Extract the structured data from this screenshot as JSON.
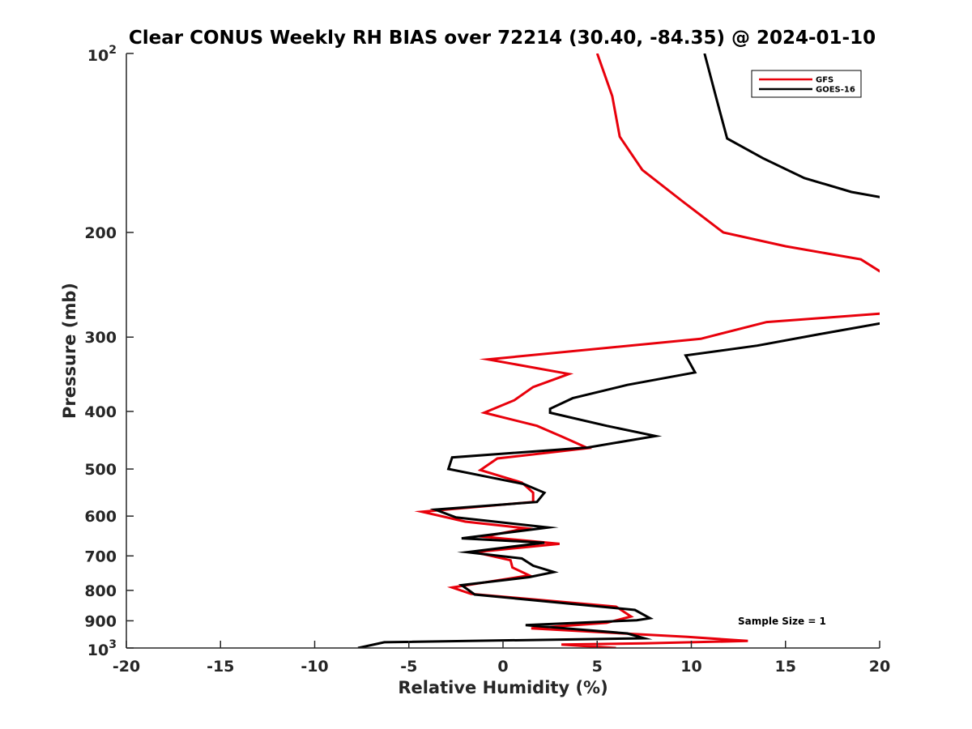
{
  "colors": {
    "GFS": "#e8000b",
    "GOES-16": "#000000",
    "axis": "#262626"
  },
  "chart_data": {
    "type": "line",
    "title": "Clear CONUS Weekly RH BIAS over 72214 (30.40, -84.35) @ 2024-01-10",
    "xlabel": "Relative Humidity (%)",
    "ylabel": "Pressure (mb)",
    "xlim": [
      -20,
      20
    ],
    "ylim": [
      100,
      1000
    ],
    "yscale": "log",
    "y_reversed": true,
    "xticks": [
      -20,
      -15,
      -10,
      -5,
      0,
      5,
      10,
      15,
      20
    ],
    "xtick_labels": [
      "-20",
      "-15",
      "-10",
      "-5",
      "0",
      "5",
      "10",
      "15",
      "20"
    ],
    "yticks": [
      {
        "value": 100,
        "base": "10",
        "exp": "2"
      },
      {
        "value": 200,
        "label": "200"
      },
      {
        "value": 300,
        "label": "300"
      },
      {
        "value": 400,
        "label": "400"
      },
      {
        "value": 500,
        "label": "500"
      },
      {
        "value": 600,
        "label": "600"
      },
      {
        "value": 700,
        "label": "700"
      },
      {
        "value": 800,
        "label": "800"
      },
      {
        "value": 900,
        "label": "900"
      },
      {
        "value": 1000,
        "base": "10",
        "exp": "3"
      }
    ],
    "legend_position": "top-right",
    "annotation": "Sample Size = 1",
    "series": [
      {
        "name": "GFS",
        "color": "#e8000b",
        "points": [
          [
            5.0,
            100
          ],
          [
            5.8,
            118
          ],
          [
            6.2,
            138
          ],
          [
            7.4,
            157
          ],
          [
            9.5,
            177
          ],
          [
            11.7,
            200
          ],
          [
            15.0,
            211
          ],
          [
            19.0,
            222
          ],
          [
            20.7,
            240
          ],
          [
            20.7,
            273
          ],
          [
            14.0,
            283
          ],
          [
            10.5,
            302
          ],
          [
            -0.8,
            327
          ],
          [
            3.5,
            346
          ],
          [
            1.6,
            364
          ],
          [
            0.6,
            383
          ],
          [
            -1.0,
            402
          ],
          [
            1.8,
            423
          ],
          [
            3.2,
            442
          ],
          [
            4.5,
            461
          ],
          [
            -0.3,
            480
          ],
          [
            -1.2,
            502
          ],
          [
            1.0,
            527
          ],
          [
            1.6,
            548
          ],
          [
            1.6,
            568
          ],
          [
            -4.3,
            590
          ],
          [
            -2.0,
            613
          ],
          [
            1.2,
            629
          ],
          [
            -1.0,
            650
          ],
          [
            3.0,
            668
          ],
          [
            -1.5,
            690
          ],
          [
            0.4,
            712
          ],
          [
            0.5,
            732
          ],
          [
            1.4,
            755
          ],
          [
            -2.7,
            791
          ],
          [
            -1.7,
            811
          ],
          [
            6.0,
            852
          ],
          [
            6.8,
            885
          ],
          [
            5.5,
            907
          ],
          [
            1.5,
            927
          ],
          [
            9.8,
            958
          ],
          [
            13.0,
            973
          ],
          [
            7.5,
            982
          ],
          [
            3.1,
            987
          ],
          [
            6.0,
            1000
          ]
        ]
      },
      {
        "name": "GOES-16",
        "color": "#000000",
        "points": [
          [
            10.7,
            100
          ],
          [
            11.3,
            118
          ],
          [
            11.9,
            139
          ],
          [
            13.8,
            150
          ],
          [
            16.0,
            162
          ],
          [
            18.5,
            171
          ],
          [
            20.7,
            176
          ],
          [
            20.7,
            282
          ],
          [
            16.7,
            297
          ],
          [
            13.5,
            310
          ],
          [
            9.7,
            322
          ],
          [
            10.2,
            344
          ],
          [
            6.6,
            361
          ],
          [
            3.7,
            380
          ],
          [
            2.5,
            396
          ],
          [
            2.5,
            402
          ],
          [
            5.5,
            423
          ],
          [
            8.1,
            440
          ],
          [
            4.5,
            460
          ],
          [
            -2.7,
            478
          ],
          [
            -2.9,
            500
          ],
          [
            1.1,
            530
          ],
          [
            2.2,
            548
          ],
          [
            1.8,
            568
          ],
          [
            -3.6,
            585
          ],
          [
            -2.5,
            603
          ],
          [
            2.4,
            627
          ],
          [
            -2.2,
            654
          ],
          [
            2.2,
            665
          ],
          [
            -1.9,
            690
          ],
          [
            1.0,
            707
          ],
          [
            1.6,
            727
          ],
          [
            2.7,
            745
          ],
          [
            1.4,
            760
          ],
          [
            -2.2,
            784
          ],
          [
            -1.5,
            813
          ],
          [
            7.0,
            863
          ],
          [
            7.8,
            891
          ],
          [
            7.1,
            898
          ],
          [
            1.2,
            915
          ],
          [
            6.6,
            945
          ],
          [
            7.5,
            963
          ],
          [
            -6.3,
            978
          ],
          [
            -7.7,
            1000
          ]
        ]
      }
    ]
  }
}
